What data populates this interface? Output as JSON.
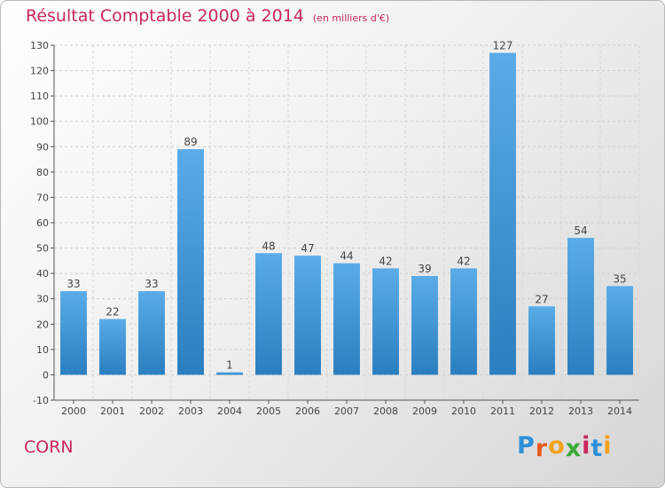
{
  "header": {
    "title": "Résultat Comptable 2000 à 2014",
    "unit": "(en milliers d'€)"
  },
  "footer": {
    "commune": "CORN",
    "logo_letters": [
      {
        "ch": "P",
        "color": "#2f8fd8"
      },
      {
        "ch": "r",
        "color": "#e85a1c"
      },
      {
        "ch": "o",
        "color": "#f2a21b"
      },
      {
        "ch": "x",
        "color": "#3aa935"
      },
      {
        "ch": "i",
        "color": "#c8285a"
      },
      {
        "ch": "t",
        "color": "#2f8fd8"
      },
      {
        "ch": "i",
        "color": "#f2a21b"
      }
    ]
  },
  "chart_data": {
    "type": "bar",
    "title": "Résultat Comptable 2000 à 2014",
    "subtitle": "(en milliers d'€)",
    "categories": [
      "2000",
      "2001",
      "2002",
      "2003",
      "2004",
      "2005",
      "2006",
      "2007",
      "2008",
      "2009",
      "2010",
      "2011",
      "2012",
      "2013",
      "2014"
    ],
    "values": [
      33,
      22,
      33,
      89,
      1,
      48,
      47,
      44,
      42,
      39,
      42,
      127,
      27,
      54,
      35
    ],
    "ylim": [
      -10,
      130
    ],
    "yticks": [
      -10,
      0,
      10,
      20,
      30,
      40,
      50,
      60,
      70,
      80,
      90,
      100,
      110,
      120,
      130
    ],
    "grid": true,
    "bar_color_top": "#5aace8",
    "bar_color_bottom": "#2a7fc0"
  }
}
